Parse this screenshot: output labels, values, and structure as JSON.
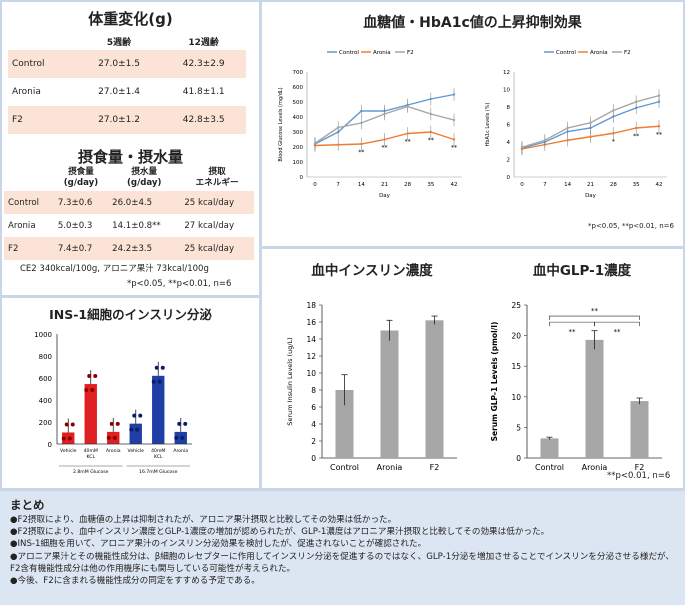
{
  "weight": {
    "title": "体重変化(g)",
    "headers": [
      "",
      "5週齢",
      "12週齢"
    ],
    "rows": [
      {
        "group": "Control",
        "w5": "27.0±1.5",
        "w12": "42.3±2.9"
      },
      {
        "group": "Aronia",
        "w5": "27.0±1.4",
        "w12": "41.8±1.1"
      },
      {
        "group": "F2",
        "w5": "27.0±1.2",
        "w12": "42.8±3.5"
      }
    ]
  },
  "intake": {
    "title": "摂食量・摂水量",
    "headers": [
      "",
      "摂食量\n(g/day)",
      "摂水量\n(g/day)",
      "摂取\nエネルギー"
    ],
    "rows": [
      {
        "group": "Control",
        "food": "7.3±0.6",
        "water": "26.0±4.5",
        "energy": "25 kcal/day"
      },
      {
        "group": "Aronia",
        "food": "5.0±0.3",
        "water": "14.1±0.8**",
        "energy": "27 kcal/day"
      },
      {
        "group": "F2",
        "food": "7.4±0.7",
        "water": "24.2±3.5",
        "energy": "25 kcal/day"
      }
    ],
    "note1": "CE2 340kcal/100g, アロニア果汁 73kcal/100g",
    "note2": "*p<0.05, **p<0.01, n=6"
  },
  "ins1": {
    "title": "INS-1細胞のインスリン分泌",
    "chart_data": {
      "type": "bar",
      "categories": [
        "Vehicle",
        "40mM KCL",
        "Aronia",
        "Vehicle",
        "40mM KCL",
        "Aronia"
      ],
      "groups": [
        "2.8mM Glucose",
        "16.7mM Glucose"
      ],
      "values": [
        105,
        545,
        110,
        185,
        620,
        110
      ],
      "ylim": [
        0,
        1000
      ],
      "yticks": [
        "0",
        "200",
        "400",
        "600",
        "800",
        "1000"
      ],
      "colors": {
        "low": "#e02020",
        "high": "#1f3fa6"
      }
    }
  },
  "glucose": {
    "title": "血糖値・HbA1c値の上昇抑制効果",
    "legend": [
      "Control",
      "Aronia",
      "F2"
    ],
    "colors": {
      "control": "#5b9bd5",
      "aronia": "#ed7d31",
      "f2": "#a5a5a5"
    },
    "chart_data": [
      {
        "type": "line",
        "ylabel": "Blood Glucose Levels (mg/dL)",
        "xlabel": "Day",
        "x": [
          0,
          7,
          14,
          21,
          28,
          35,
          42
        ],
        "ylim": [
          0,
          700
        ],
        "yticks": [
          "0",
          "100",
          "200",
          "300",
          "400",
          "500",
          "600",
          "700"
        ],
        "series": [
          {
            "name": "Control",
            "values": [
              220,
              300,
              440,
              440,
              480,
              520,
              550
            ]
          },
          {
            "name": "Aronia",
            "values": [
              210,
              215,
              220,
              250,
              290,
              300,
              250
            ]
          },
          {
            "name": "F2",
            "values": [
              225,
              330,
              360,
              420,
              470,
              420,
              380
            ]
          }
        ],
        "sig": [
          "",
          "",
          "**",
          "**",
          "**",
          "**",
          "**"
        ]
      },
      {
        "type": "line",
        "ylabel": "HbA1c Levels (%)",
        "xlabel": "Day",
        "x": [
          0,
          7,
          14,
          21,
          28,
          35,
          42
        ],
        "ylim": [
          0,
          12
        ],
        "yticks": [
          "0",
          "2",
          "4",
          "6",
          "8",
          "10",
          "12"
        ],
        "series": [
          {
            "name": "Control",
            "values": [
              3.3,
              4.0,
              5.2,
              5.6,
              6.9,
              7.9,
              8.6
            ]
          },
          {
            "name": "Aronia",
            "values": [
              3.2,
              3.7,
              4.2,
              4.6,
              5.0,
              5.6,
              5.8
            ]
          },
          {
            "name": "F2",
            "values": [
              3.4,
              4.2,
              5.6,
              6.2,
              7.6,
              8.6,
              9.3
            ]
          }
        ],
        "sig": [
          "",
          "",
          "",
          "",
          "*",
          "**",
          "**"
        ]
      }
    ],
    "note": "*p<0.05, **p<0.01, n=6"
  },
  "insulin": {
    "title": "血中インスリン濃度",
    "chart_data": {
      "type": "bar",
      "categories": [
        "Control",
        "Aronia",
        "F2"
      ],
      "values": [
        8.0,
        15.0,
        16.2
      ],
      "errors": [
        1.8,
        1.2,
        0.5
      ],
      "ylabel": "Serum Insulin Levels (ug/L)",
      "ylim": [
        0,
        18
      ],
      "yticks": [
        "0",
        "2",
        "4",
        "6",
        "8",
        "10",
        "12",
        "14",
        "16",
        "18"
      ]
    }
  },
  "glp1": {
    "title": "血中GLP-1濃度",
    "chart_data": {
      "type": "bar",
      "categories": [
        "Control",
        "Aronia",
        "F2"
      ],
      "values": [
        3.2,
        19.3,
        9.3
      ],
      "errors": [
        0.2,
        1.5,
        0.5
      ],
      "ylabel": "Serum GLP-1 Levels (pmol/l)",
      "ylim": [
        0,
        25
      ],
      "yticks": [
        "0",
        "5",
        "10",
        "15",
        "20",
        "25"
      ]
    },
    "sig_label": "**",
    "note": "**p<0.01, n=6"
  },
  "summary": {
    "title": "まとめ",
    "lines": [
      "●F2摂取により、血糖値の上昇は抑制されたが、アロニア果汁摂取と比較してその効果は低かった。",
      "●F2摂取により、血中インスリン濃度とGLP-1濃度の増加が認められたが、GLP-1濃度はアロニア果汁摂取と比較してその効果は低かった。",
      "●INS-1細胞を用いて、アロニア果汁のインスリン分泌効果を検討したが、促進されないことが確認された。",
      "●アロニア果汁とその機能性成分は、β細胞のレセプターに作用してインスリン分泌を促進するのではなく、GLP-1分泌を増加させることでインスリンを分泌させる様だが、F2含有機能性成分は他の作用機序にも関与している可能性が考えられた。",
      "●今後、F2に含まれる機能性成分の同定をすすめる予定である。"
    ]
  }
}
